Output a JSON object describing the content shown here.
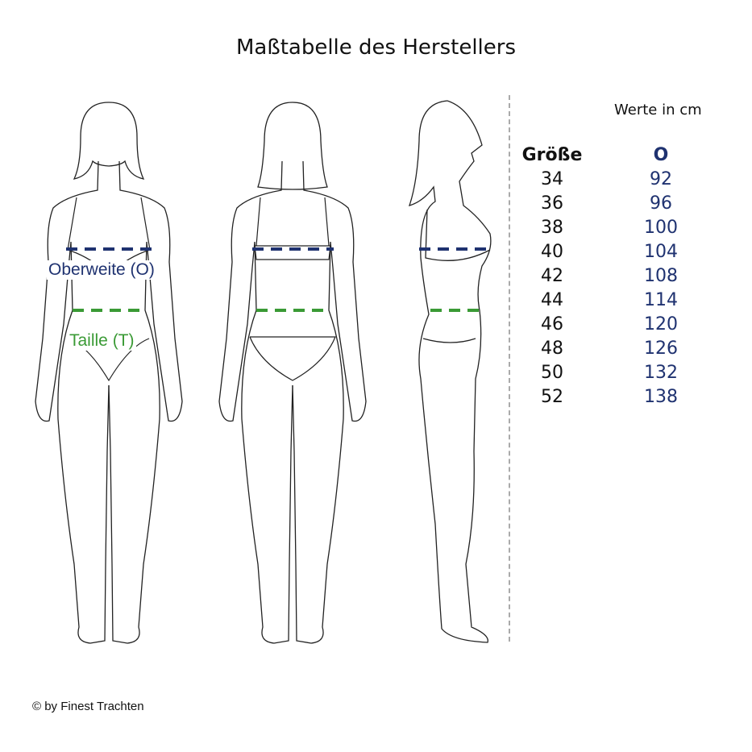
{
  "title": "Maßtabelle des Herstellers",
  "labels": {
    "bust": "Oberweite (O)",
    "waist": "Taille (T)"
  },
  "table": {
    "unit_note": "Werte in cm",
    "headers": {
      "size": "Größe",
      "bust": "O"
    },
    "rows": [
      {
        "size": "34",
        "bust": "92"
      },
      {
        "size": "36",
        "bust": "96"
      },
      {
        "size": "38",
        "bust": "100"
      },
      {
        "size": "40",
        "bust": "104"
      },
      {
        "size": "42",
        "bust": "108"
      },
      {
        "size": "44",
        "bust": "114"
      },
      {
        "size": "46",
        "bust": "120"
      },
      {
        "size": "48",
        "bust": "126"
      },
      {
        "size": "50",
        "bust": "132"
      },
      {
        "size": "52",
        "bust": "138"
      }
    ]
  },
  "copyright": "© by Finest Trachten",
  "colors": {
    "bust": "#1f3270",
    "waist": "#3a9a35",
    "separator": "#aaaaaa"
  }
}
